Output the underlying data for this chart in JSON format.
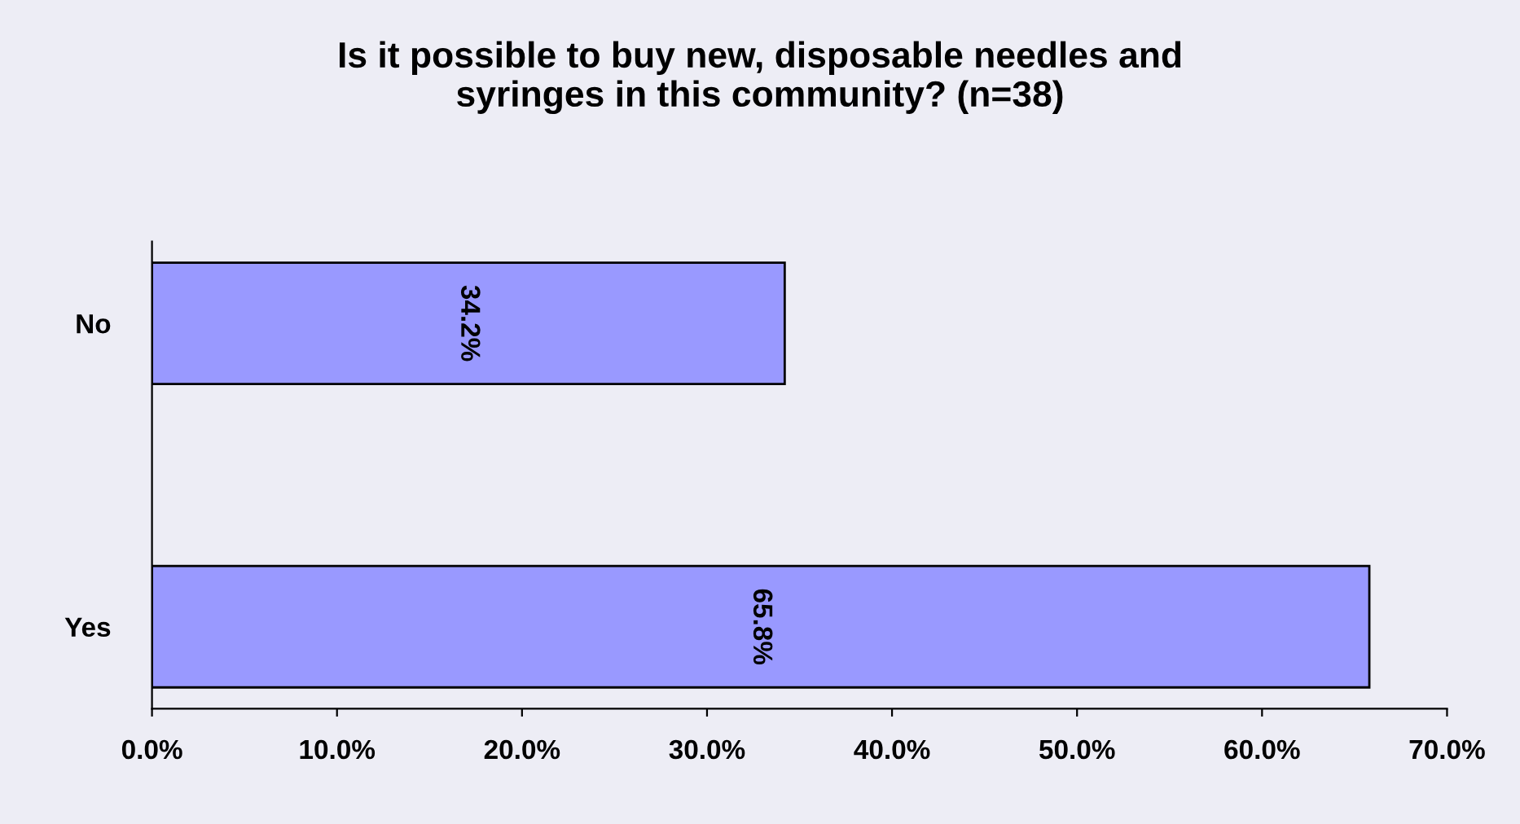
{
  "chart_data": {
    "type": "bar",
    "orientation": "horizontal",
    "title": "Is it possible to buy new, disposable needles and\nsyringes in this community? (n=38)",
    "categories": [
      "No",
      "Yes"
    ],
    "values": [
      34.2,
      65.8
    ],
    "color": "#9999ff",
    "value_labels": [
      "34.2%",
      "65.8%"
    ],
    "xlim": [
      0,
      70
    ],
    "xticks": [
      {
        "value": 0,
        "label": "0.0%"
      },
      {
        "value": 10,
        "label": "10.0%"
      },
      {
        "value": 20,
        "label": "20.0%"
      },
      {
        "value": 30,
        "label": "30.0%"
      },
      {
        "value": 40,
        "label": "40.0%"
      },
      {
        "value": 50,
        "label": "50.0%"
      },
      {
        "value": 60,
        "label": "60.0%"
      },
      {
        "value": 70,
        "label": "70.0%"
      }
    ],
    "grid": false,
    "legend": false
  }
}
